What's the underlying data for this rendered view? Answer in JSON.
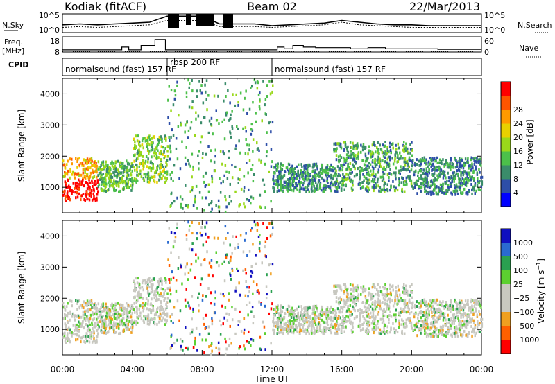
{
  "chart_data": [
    {
      "type": "line",
      "panel": "noise",
      "header": {
        "title_left": "Kodiak (fitACF)",
        "title_center": "Beam 02",
        "title_right": "22/Mar/2013"
      },
      "left_label": "N.Sky",
      "right_label": "N.Search",
      "left_ticks": [
        "10^5",
        "10^0"
      ],
      "right_ticks": [
        "10^5",
        "10^0"
      ],
      "series": [
        {
          "name": "N.Sky",
          "x": [
            0,
            1,
            2,
            3,
            4,
            5,
            6,
            7,
            8,
            9,
            10,
            11,
            12,
            13,
            14,
            15,
            16,
            17,
            18,
            19,
            20,
            21,
            22,
            23,
            24
          ],
          "values": [
            0.45,
            0.5,
            0.45,
            0.5,
            0.55,
            0.6,
            0.95,
            0.95,
            0.95,
            0.5,
            0.5,
            0.5,
            0.4,
            0.45,
            0.5,
            0.55,
            0.7,
            0.6,
            0.5,
            0.45,
            0.45,
            0.4,
            0.4,
            0.4,
            0.4
          ]
        },
        {
          "name": "N.Search",
          "x": [
            0,
            1,
            2,
            3,
            4,
            5,
            6,
            7,
            8,
            9,
            10,
            11,
            12,
            13,
            14,
            15,
            16,
            17,
            18,
            19,
            20,
            21,
            22,
            23,
            24
          ],
          "values": [
            0.3,
            0.35,
            0.3,
            0.35,
            0.4,
            0.45,
            0.7,
            0.7,
            0.7,
            0.35,
            0.35,
            0.35,
            0.3,
            0.35,
            0.4,
            0.45,
            0.6,
            0.45,
            0.4,
            0.35,
            0.3,
            0.3,
            0.3,
            0.3,
            0.3
          ]
        }
      ]
    },
    {
      "type": "line",
      "panel": "frequency",
      "left_label_top": "Freq.",
      "left_label_bottom": "[MHz]",
      "left_ticks": [
        "18",
        "8"
      ],
      "right_label": "Nave",
      "right_ticks": [
        "60",
        "0"
      ],
      "series": [
        {
          "name": "Freq",
          "x": [
            0,
            1,
            2,
            3,
            3.4,
            3.8,
            4.5,
            5.3,
            5.9,
            6.1,
            7,
            8,
            9,
            10,
            11,
            12,
            12.3,
            12.7,
            13.2,
            13.8,
            14.5,
            15.5,
            16.5,
            17.5,
            18.5,
            19.5,
            20.5,
            21.5,
            22.5,
            24
          ],
          "values": [
            8,
            8,
            8,
            8,
            10.5,
            8,
            12,
            17.5,
            8,
            8,
            8,
            8,
            8,
            8,
            8,
            8,
            10.5,
            9,
            12,
            10.5,
            10,
            10,
            9,
            10,
            9,
            9,
            9,
            8.5,
            8.5,
            8
          ]
        },
        {
          "name": "Nave",
          "x": [
            0,
            6,
            7,
            8,
            9,
            12,
            24
          ],
          "values": [
            3,
            3,
            3,
            3,
            3,
            3,
            3
          ]
        }
      ]
    },
    {
      "type": "table",
      "panel": "cpid",
      "label": "CPID",
      "segments": [
        {
          "start": 0,
          "end": 6.0,
          "text": "normalsound (fast) 157 RF"
        },
        {
          "start": 6.0,
          "end": 12.0,
          "text": "rbsp 200 RF"
        },
        {
          "start": 12.0,
          "end": 24,
          "text": "normalsound (fast) 157 RF"
        }
      ]
    },
    {
      "type": "heatmap",
      "panel": "power",
      "ylabel": "Slant Range [km]",
      "yticks": [
        1000,
        2000,
        3000,
        4000
      ],
      "ylim": [
        180,
        4500
      ],
      "colorbar_label": "Power [dB]",
      "colorbar_ticks": [
        4,
        8,
        12,
        16,
        20,
        24,
        28
      ],
      "colorbar_colors": [
        "#0000ff",
        "#2d4ea8",
        "#3a8c6a",
        "#4cc04a",
        "#9ad81a",
        "#e8d000",
        "#ff9a00",
        "#ff5500",
        "#ff0000"
      ],
      "echo_regions": [
        {
          "x": [
            0,
            2
          ],
          "range": [
            600,
            2000
          ],
          "value": 22
        },
        {
          "x": [
            2,
            4
          ],
          "range": [
            900,
            1900
          ],
          "value": 12
        },
        {
          "x": [
            4,
            6
          ],
          "range": [
            1200,
            2700
          ],
          "value": 14
        },
        {
          "x": [
            6,
            12
          ],
          "range": [
            200,
            4500
          ],
          "value": 10
        },
        {
          "x": [
            12,
            15.5
          ],
          "range": [
            900,
            1800
          ],
          "value": 8
        },
        {
          "x": [
            15.5,
            20
          ],
          "range": [
            900,
            2500
          ],
          "value": 10
        },
        {
          "x": [
            20,
            24
          ],
          "range": [
            800,
            2000
          ],
          "value": 8
        }
      ]
    },
    {
      "type": "heatmap",
      "panel": "velocity",
      "ylabel": "Slant Range [km]",
      "yticks": [
        1000,
        2000,
        3000,
        4000
      ],
      "ylim": [
        180,
        4500
      ],
      "colorbar_label": "Velocity [m s^-1]",
      "colorbar_ticks": [
        1000,
        500,
        100,
        25,
        -25,
        -100,
        -500,
        -1000
      ],
      "colorbar_colors": [
        "#1010c0",
        "#2a6ad0",
        "#2aa050",
        "#5cd030",
        "#c8c8c0",
        "#c8c8c0",
        "#f0a020",
        "#ff6000",
        "#ff0000"
      ],
      "xlabel": "Time UT",
      "xticks": [
        "00:00",
        "04:00",
        "08:00",
        "12:00",
        "16:00",
        "20:00",
        "00:00"
      ],
      "xlim": [
        0,
        24
      ]
    }
  ]
}
